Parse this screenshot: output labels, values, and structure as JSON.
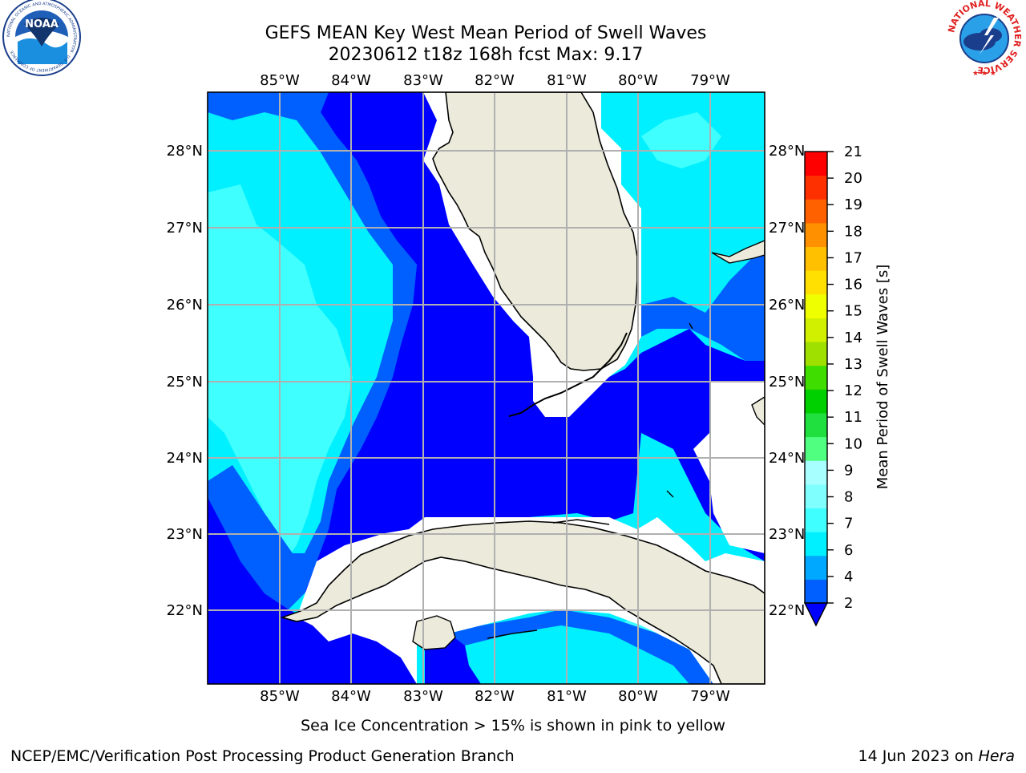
{
  "title": {
    "line1": "GEFS MEAN Key West Mean Period of Swell Waves",
    "line2": "20230612 t18z 168h fcst   Max: 9.17"
  },
  "logos": {
    "left_name": "NOAA",
    "left_ring_text": "NATIONAL OCEANIC AND ATMOSPHERIC ADMINISTRATION · U.S. DEPARTMENT OF COMMERCE",
    "right_ring_text": "NATIONAL WEATHER SERVICE"
  },
  "map": {
    "lon_labels": [
      "85°W",
      "84°W",
      "83°W",
      "82°W",
      "81°W",
      "80°W",
      "79°W"
    ],
    "lat_labels": [
      "28°N",
      "27°N",
      "26°N",
      "25°N",
      "24°N",
      "23°N",
      "22°N"
    ],
    "grid": true,
    "lon_range": [
      -86.0,
      -78.3
    ],
    "lat_range": [
      21.0,
      28.75
    ]
  },
  "colorbar": {
    "label": "Mean Period of Swell Waves [s]",
    "ticks": [
      "2",
      "4",
      "6",
      "7",
      "8",
      "9",
      "10",
      "11",
      "12",
      "13",
      "14",
      "15",
      "16",
      "17",
      "18",
      "19",
      "20",
      "21"
    ],
    "colors": [
      "#0060ff",
      "#00a8ff",
      "#00f0ff",
      "#40ffff",
      "#80ffff",
      "#a8ffff",
      "#50ff80",
      "#20e040",
      "#00d000",
      "#40dd00",
      "#a0e000",
      "#d0f000",
      "#f0ff00",
      "#ffe000",
      "#ffc000",
      "#ff9000",
      "#ff6000",
      "#ff3000",
      "#ff0000"
    ],
    "under_color": "#0000ff"
  },
  "chart_data": {
    "type": "heatmap",
    "title": "GEFS MEAN Key West Mean Period of Swell Waves",
    "subtitle": "20230612 t18z 168h fcst   Max: 9.17",
    "colorbar_label": "Mean Period of Swell Waves [s]",
    "max_value": 9.17
  },
  "footer": {
    "note": "Sea Ice Concentration > 15% is shown in pink to yellow",
    "credit": "NCEP/EMC/Verification Post Processing Product Generation Branch",
    "date": "14 Jun 2023 on ",
    "host": "Hera"
  }
}
